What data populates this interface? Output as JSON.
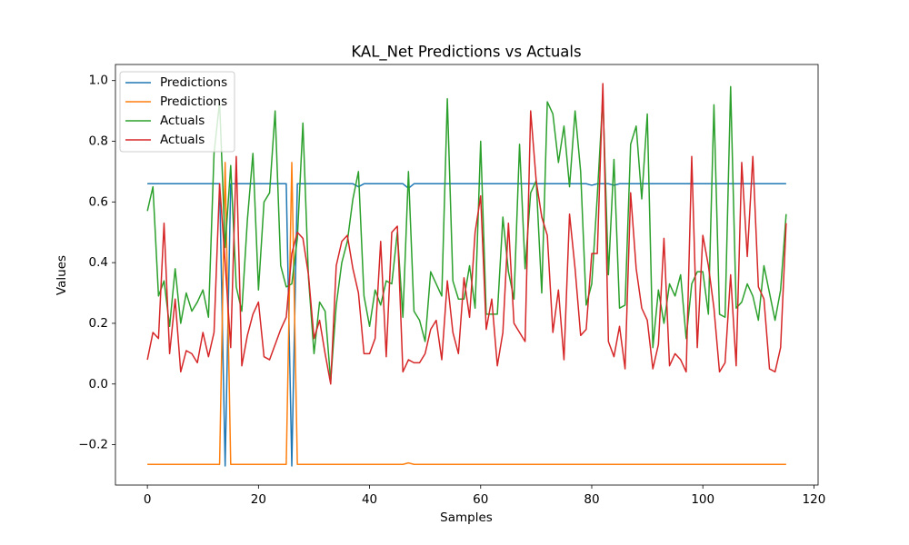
{
  "chart_data": {
    "type": "line",
    "title": "KAL_Net Predictions vs Actuals",
    "x_label": "Samples",
    "y_label": "Values",
    "x": [
      0,
      1,
      2,
      3,
      4,
      5,
      6,
      7,
      8,
      9,
      10,
      11,
      12,
      13,
      14,
      15,
      16,
      17,
      18,
      19,
      20,
      21,
      22,
      23,
      24,
      25,
      26,
      27,
      28,
      29,
      30,
      31,
      32,
      33,
      34,
      35,
      36,
      37,
      38,
      39,
      40,
      41,
      42,
      43,
      44,
      45,
      46,
      47,
      48,
      49,
      50,
      51,
      52,
      53,
      54,
      55,
      56,
      57,
      58,
      59,
      60,
      61,
      62,
      63,
      64,
      65,
      66,
      67,
      68,
      69,
      70,
      71,
      72,
      73,
      74,
      75,
      76,
      77,
      78,
      79,
      80,
      81,
      82,
      83,
      84,
      85,
      86,
      87,
      88,
      89,
      90,
      91,
      92,
      93,
      94,
      95,
      96,
      97,
      98,
      99,
      100,
      101,
      102,
      103,
      104,
      105,
      106,
      107,
      108,
      109,
      110,
      111,
      112,
      113,
      114,
      115
    ],
    "series": [
      {
        "name": "Predictions",
        "color": "#1f77b4",
        "values": [
          0.66,
          0.66,
          0.66,
          0.66,
          0.66,
          0.66,
          0.66,
          0.66,
          0.66,
          0.66,
          0.66,
          0.66,
          0.66,
          0.66,
          -0.27,
          0.66,
          0.66,
          0.66,
          0.66,
          0.66,
          0.66,
          0.66,
          0.66,
          0.66,
          0.66,
          0.66,
          -0.27,
          0.66,
          0.66,
          0.66,
          0.66,
          0.66,
          0.66,
          0.66,
          0.66,
          0.66,
          0.66,
          0.66,
          0.65,
          0.66,
          0.66,
          0.66,
          0.66,
          0.66,
          0.66,
          0.66,
          0.66,
          0.645,
          0.66,
          0.66,
          0.66,
          0.66,
          0.66,
          0.66,
          0.66,
          0.66,
          0.66,
          0.66,
          0.66,
          0.66,
          0.66,
          0.66,
          0.66,
          0.66,
          0.66,
          0.66,
          0.66,
          0.66,
          0.66,
          0.66,
          0.66,
          0.66,
          0.66,
          0.66,
          0.66,
          0.66,
          0.66,
          0.66,
          0.66,
          0.66,
          0.655,
          0.66,
          0.66,
          0.66,
          0.655,
          0.66,
          0.66,
          0.66,
          0.66,
          0.66,
          0.66,
          0.66,
          0.66,
          0.66,
          0.66,
          0.66,
          0.66,
          0.66,
          0.66,
          0.66,
          0.66,
          0.66,
          0.66,
          0.66,
          0.66,
          0.66,
          0.66,
          0.66,
          0.66,
          0.66,
          0.66,
          0.66,
          0.66,
          0.66,
          0.66,
          0.66
        ]
      },
      {
        "name": "Predictions",
        "color": "#ff7f0e",
        "values": [
          -0.265,
          -0.265,
          -0.265,
          -0.265,
          -0.265,
          -0.265,
          -0.265,
          -0.265,
          -0.265,
          -0.265,
          -0.265,
          -0.265,
          -0.265,
          -0.265,
          0.73,
          -0.265,
          -0.265,
          -0.265,
          -0.265,
          -0.265,
          -0.265,
          -0.265,
          -0.265,
          -0.265,
          -0.265,
          -0.265,
          0.73,
          -0.265,
          -0.265,
          -0.265,
          -0.265,
          -0.265,
          -0.265,
          -0.265,
          -0.265,
          -0.265,
          -0.265,
          -0.265,
          -0.265,
          -0.265,
          -0.265,
          -0.265,
          -0.265,
          -0.265,
          -0.265,
          -0.265,
          -0.265,
          -0.26,
          -0.265,
          -0.265,
          -0.265,
          -0.265,
          -0.265,
          -0.265,
          -0.265,
          -0.265,
          -0.265,
          -0.265,
          -0.265,
          -0.265,
          -0.265,
          -0.265,
          -0.265,
          -0.265,
          -0.265,
          -0.265,
          -0.265,
          -0.265,
          -0.265,
          -0.265,
          -0.265,
          -0.265,
          -0.265,
          -0.265,
          -0.265,
          -0.265,
          -0.265,
          -0.265,
          -0.265,
          -0.265,
          -0.265,
          -0.265,
          -0.265,
          -0.265,
          -0.265,
          -0.265,
          -0.265,
          -0.265,
          -0.265,
          -0.265,
          -0.265,
          -0.265,
          -0.265,
          -0.265,
          -0.265,
          -0.265,
          -0.265,
          -0.265,
          -0.265,
          -0.265,
          -0.265,
          -0.265,
          -0.265,
          -0.265,
          -0.265,
          -0.265,
          -0.265,
          -0.265,
          -0.265,
          -0.265,
          -0.265,
          -0.265,
          -0.265,
          -0.265,
          -0.265,
          -0.265
        ]
      },
      {
        "name": "Actuals",
        "color": "#2ca02c",
        "values": [
          0.57,
          0.65,
          0.29,
          0.34,
          0.19,
          0.38,
          0.2,
          0.3,
          0.24,
          0.27,
          0.31,
          0.22,
          0.76,
          0.93,
          0.45,
          0.72,
          0.32,
          0.24,
          0.54,
          0.76,
          0.31,
          0.6,
          0.63,
          0.9,
          0.39,
          0.32,
          0.33,
          0.48,
          0.86,
          0.35,
          0.1,
          0.27,
          0.24,
          0.01,
          0.26,
          0.4,
          0.47,
          0.61,
          0.7,
          0.29,
          0.19,
          0.31,
          0.26,
          0.34,
          0.33,
          0.5,
          0.22,
          0.7,
          0.24,
          0.21,
          0.14,
          0.37,
          0.33,
          0.29,
          0.94,
          0.34,
          0.28,
          0.28,
          0.39,
          0.25,
          0.8,
          0.23,
          0.23,
          0.23,
          0.55,
          0.37,
          0.28,
          0.79,
          0.38,
          0.63,
          0.67,
          0.3,
          0.93,
          0.89,
          0.73,
          0.85,
          0.65,
          0.9,
          0.7,
          0.26,
          0.33,
          0.62,
          0.95,
          0.36,
          0.74,
          0.25,
          0.26,
          0.79,
          0.85,
          0.61,
          0.89,
          0.12,
          0.31,
          0.2,
          0.33,
          0.29,
          0.36,
          0.15,
          0.33,
          0.37,
          0.37,
          0.23,
          0.92,
          0.23,
          0.22,
          0.98,
          0.25,
          0.27,
          0.33,
          0.29,
          0.21,
          0.39,
          0.3,
          0.21,
          0.31,
          0.56
        ]
      },
      {
        "name": "Actuals",
        "color": "#d62728",
        "values": [
          0.08,
          0.17,
          0.15,
          0.53,
          0.1,
          0.28,
          0.04,
          0.11,
          0.1,
          0.07,
          0.17,
          0.09,
          0.17,
          0.66,
          0.4,
          0.12,
          0.75,
          0.06,
          0.16,
          0.23,
          0.27,
          0.09,
          0.08,
          0.13,
          0.18,
          0.22,
          0.43,
          0.5,
          0.48,
          0.36,
          0.15,
          0.21,
          0.1,
          0.0,
          0.39,
          0.47,
          0.49,
          0.38,
          0.3,
          0.1,
          0.1,
          0.15,
          0.47,
          0.09,
          0.5,
          0.52,
          0.04,
          0.08,
          0.07,
          0.07,
          0.1,
          0.18,
          0.21,
          0.08,
          0.34,
          0.17,
          0.1,
          0.35,
          0.22,
          0.5,
          0.62,
          0.18,
          0.28,
          0.06,
          0.17,
          0.53,
          0.2,
          0.17,
          0.14,
          0.9,
          0.67,
          0.55,
          0.49,
          0.17,
          0.31,
          0.08,
          0.56,
          0.38,
          0.16,
          0.18,
          0.43,
          0.43,
          0.99,
          0.14,
          0.09,
          0.19,
          0.05,
          0.63,
          0.38,
          0.25,
          0.21,
          0.05,
          0.13,
          0.48,
          0.06,
          0.1,
          0.08,
          0.04,
          0.75,
          0.12,
          0.49,
          0.39,
          0.25,
          0.04,
          0.07,
          0.36,
          0.06,
          0.73,
          0.42,
          0.75,
          0.32,
          0.28,
          0.05,
          0.04,
          0.12,
          0.53
        ]
      }
    ],
    "xlim": [
      -5.75,
      120.75
    ],
    "xticks": [
      0,
      20,
      40,
      60,
      80,
      100,
      120
    ],
    "ylim": [
      -0.333,
      1.053
    ],
    "yticks": [
      {
        "value": -0.2,
        "label": "−0.2"
      },
      {
        "value": 0,
        "label": "0.0"
      },
      0.2,
      0.4,
      0.6,
      0.8,
      {
        "value": 1,
        "label": "1.0"
      }
    ],
    "grid": false,
    "legend": "upper left"
  }
}
